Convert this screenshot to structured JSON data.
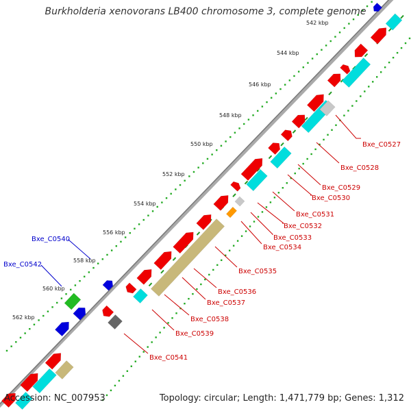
{
  "title": "Burkholderia xenovorans LB400 chromosome 3, complete genome",
  "footer": {
    "accession": "Accession: NC_007953",
    "stats": "Topology: circular; Length: 1,471,779 bp; Genes: 1,312"
  },
  "colors": {
    "cds": "#ee0000",
    "rna": "#00dddd",
    "pseudo": "#c8b87a",
    "hypothetical_gray": "#c8c8c8",
    "dark_gray": "#666666",
    "orange": "#ff9900",
    "blue_gene": "#0000dd",
    "green_gene": "#22bb22",
    "scale_dots": "#22aa22",
    "label_red": "#cc0000",
    "label_blue": "#0000cc"
  },
  "scale_labels": [
    "542 kbp",
    "544 kbp",
    "546 kbp",
    "548 kbp",
    "550 kbp",
    "552 kbp",
    "554 kbp",
    "556 kbp",
    "558 kbp",
    "560 kbp",
    "562 kbp"
  ],
  "gene_labels_red": [
    "Bxe_C0527",
    "Bxe_C0528",
    "Bxe_C0529",
    "Bxe_C0530",
    "Bxe_C0531",
    "Bxe_C0532",
    "Bxe_C0533",
    "Bxe_C0534",
    "Bxe_C0535",
    "Bxe_C0536",
    "Bxe_C0537",
    "Bxe_C0538",
    "Bxe_C0539",
    "Bxe_C0541"
  ],
  "gene_labels_blue": [
    "Bxe_C0540",
    "Bxe_C0542"
  ]
}
